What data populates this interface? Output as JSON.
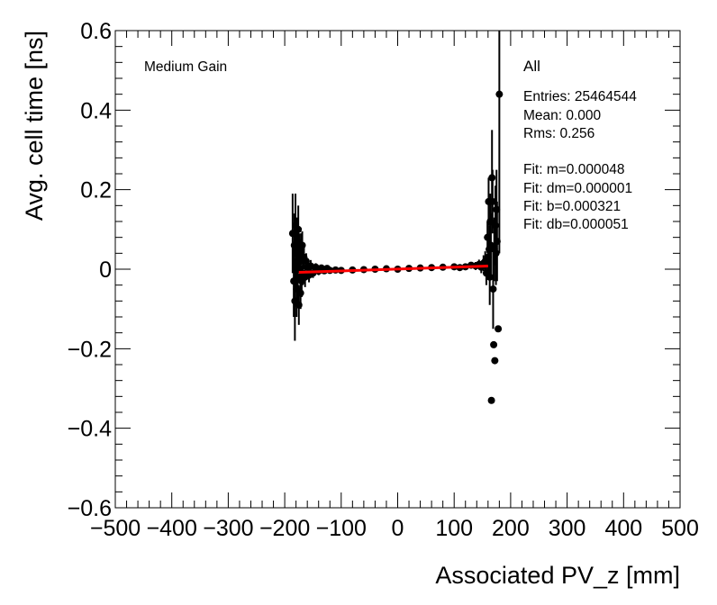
{
  "chart_data": {
    "type": "scatter",
    "xlabel": "Associated PV_z [mm]",
    "ylabel": "Avg. cell time [ns]",
    "xlim": [
      -500,
      500
    ],
    "ylim": [
      -0.6,
      0.6
    ],
    "x_ticks": [
      -500,
      -400,
      -300,
      -200,
      -100,
      0,
      100,
      200,
      300,
      400,
      500
    ],
    "x_tick_labels": [
      "−500",
      "−400",
      "−300",
      "−200",
      "−100",
      "0",
      "100",
      "200",
      "300",
      "400",
      "500"
    ],
    "y_ticks": [
      -0.6,
      -0.4,
      -0.2,
      0,
      0.2,
      0.4,
      0.6
    ],
    "y_tick_labels": [
      "−0.6",
      "−0.4",
      "−0.2",
      "0",
      "0.2",
      "0.4",
      "0.6"
    ],
    "grid": false,
    "annotation_left": "Medium Gain",
    "stats": {
      "title": "All",
      "lines": [
        "Entries: 25464544",
        "Mean: 0.000",
        "Rms: 0.256",
        "",
        "Fit: m=0.000048",
        "Fit: dm=0.000001",
        "Fit: b=0.000321",
        "Fit: db=0.000051"
      ]
    },
    "series": [
      {
        "name": "data",
        "color": "#000000",
        "x": [
          -186,
          -184,
          -183,
          -182,
          -181,
          -180,
          -179,
          -178,
          -177,
          -176,
          -175,
          -174,
          -173,
          -172,
          -171,
          -170,
          -169,
          -168,
          -166,
          -164,
          -162,
          -160,
          -157,
          -154,
          -150,
          -145,
          -140,
          -135,
          -130,
          -125,
          -120,
          -110,
          -100,
          -80,
          -60,
          -40,
          -20,
          0,
          20,
          40,
          60,
          80,
          100,
          110,
          120,
          130,
          138,
          144,
          148,
          152,
          155,
          157,
          159,
          160,
          161,
          162,
          163,
          164,
          165,
          166,
          167,
          168,
          169,
          170,
          171,
          172,
          173,
          174,
          175,
          176,
          178,
          180
        ],
        "y": [
          0.09,
          -0.03,
          0.06,
          -0.08,
          0.11,
          0.02,
          -0.05,
          0.07,
          -0.02,
          0.1,
          -0.09,
          0.04,
          0.02,
          -0.06,
          0.05,
          -0.03,
          0.06,
          -0.01,
          0.03,
          -0.02,
          0.02,
          0.005,
          -0.015,
          0.008,
          -0.01,
          0.005,
          -0.005,
          0.003,
          -0.004,
          0.002,
          -0.003,
          -0.002,
          -0.003,
          -0.002,
          -0.001,
          0.0,
          0.001,
          0.0,
          0.002,
          0.003,
          0.004,
          0.005,
          0.006,
          0.004,
          0.006,
          0.01,
          0.008,
          0.012,
          0.005,
          0.015,
          0.02,
          -0.01,
          0.08,
          0.03,
          0.17,
          0.05,
          -0.02,
          0.12,
          0.06,
          -0.33,
          0.23,
          0.17,
          -0.05,
          -0.19,
          0.05,
          -0.23,
          0.11,
          0.04,
          0.15,
          0.07,
          -0.15,
          0.44
        ],
        "yerr": [
          0.1,
          0.09,
          0.08,
          0.1,
          0.08,
          0.07,
          0.07,
          0.06,
          0.06,
          0.06,
          0.05,
          0.05,
          0.05,
          0.04,
          0.04,
          0.04,
          0.035,
          0.03,
          0.03,
          0.025,
          0.02,
          0.02,
          0.018,
          0.015,
          0.012,
          0.01,
          0.01,
          0.008,
          0.008,
          0.007,
          0.006,
          0.005,
          0.004,
          0.003,
          0.003,
          0.003,
          0.003,
          0.003,
          0.003,
          0.003,
          0.003,
          0.003,
          0.004,
          0.005,
          0.006,
          0.008,
          0.01,
          0.012,
          0.015,
          0.02,
          0.025,
          0.03,
          0.04,
          0.05,
          0.06,
          0.06,
          0.07,
          0.07,
          0.08,
          0.0,
          0.12,
          0.08,
          0.1,
          0.0,
          0.08,
          0.0,
          0.1,
          0.08,
          0.1,
          0.1,
          0.0,
          0.4
        ]
      },
      {
        "name": "fit",
        "type": "line",
        "color": "#ff0000",
        "x": [
          -175,
          160
        ],
        "y": [
          -0.008,
          0.008
        ]
      }
    ]
  }
}
